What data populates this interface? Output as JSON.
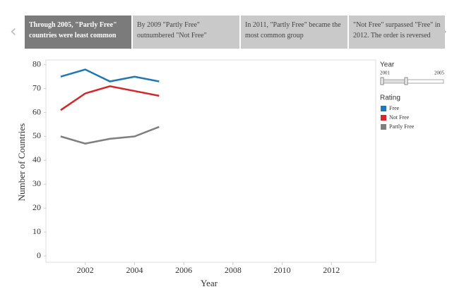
{
  "story_tabs": [
    "Through 2005, \"Partly Free\" countries were least common",
    "By 2009 \"Partly Free\" outnumbered \"Not Free\"",
    "In 2011, \"Partly Free\" became the most common group",
    "\"Not Free\" surpassed \"Free\" in 2012. The order is reversed"
  ],
  "filter": {
    "title": "Year",
    "min_label": "2001",
    "max_label": "2005"
  },
  "chart_data": {
    "type": "line",
    "x_label": "Year",
    "y_label": "Number of Countries",
    "x": [
      2001,
      2002,
      2003,
      2004,
      2005
    ],
    "series": [
      {
        "name": "Free",
        "color": "#1f77b4",
        "values": [
          75,
          78,
          73,
          75,
          73
        ]
      },
      {
        "name": "Not Free",
        "color": "#d62728",
        "values": [
          61,
          68,
          71,
          69,
          67
        ]
      },
      {
        "name": "Partly Free",
        "color": "#7f7f7f",
        "values": [
          50,
          47,
          49,
          50,
          54
        ]
      }
    ],
    "legend_title": "Rating",
    "xlim": [
      2000.4,
      2013.8
    ],
    "xticks": [
      2002,
      2004,
      2006,
      2008,
      2010,
      2012
    ],
    "ylim": [
      0,
      82
    ],
    "yticks": [
      0,
      10,
      20,
      30,
      40,
      50,
      60,
      70,
      80
    ]
  }
}
